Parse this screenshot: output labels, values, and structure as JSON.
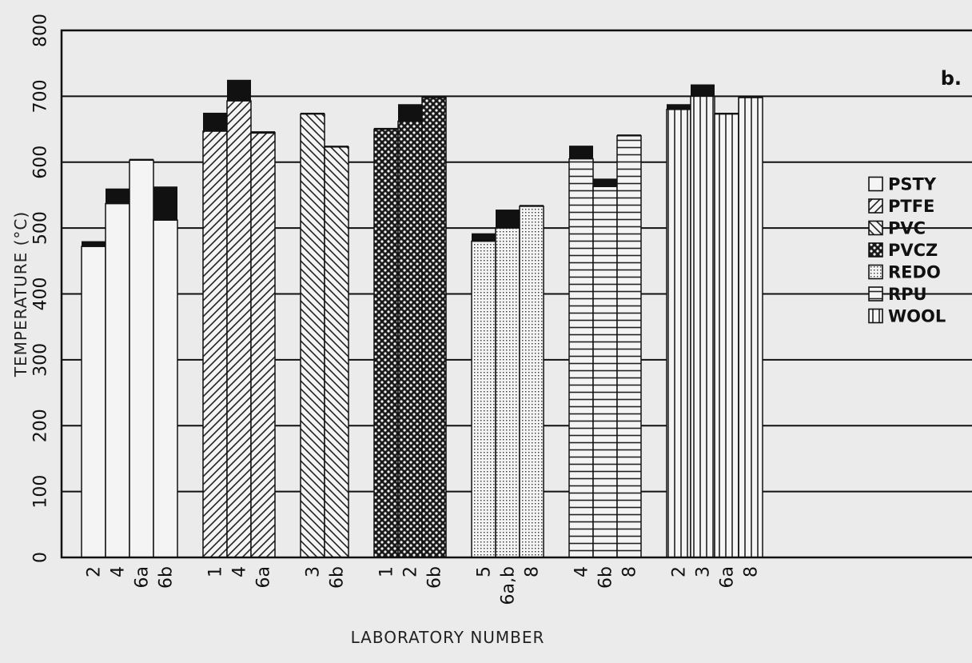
{
  "chart_data": {
    "type": "bar",
    "panel_label": "b.",
    "ylabel": "TEMPERATURE (°C)",
    "xlabel": "LABORATORY NUMBER",
    "ylim": [
      0,
      800
    ],
    "yticks": [
      0,
      100,
      200,
      300,
      400,
      500,
      600,
      700,
      800
    ],
    "grid": true,
    "legend_position": "right",
    "groups": [
      {
        "material": "PSTY",
        "pattern": "blank",
        "bars": [
          {
            "lab": "2",
            "value": 472,
            "range_top": 480
          },
          {
            "lab": "4",
            "value": 537,
            "range_top": 560
          },
          {
            "lab": "6a",
            "value": 603,
            "range_top": 605
          },
          {
            "lab": "6b",
            "value": 512,
            "range_top": 563
          }
        ]
      },
      {
        "material": "PTFE",
        "pattern": "diag-right",
        "bars": [
          {
            "lab": "1",
            "value": 647,
            "range_top": 675
          },
          {
            "lab": "4",
            "value": 693,
            "range_top": 725
          },
          {
            "lab": "6a",
            "value": 645,
            "range_top": 645
          }
        ]
      },
      {
        "material": "PVC",
        "pattern": "diag-left",
        "bars": [
          {
            "lab": "3",
            "value": 673,
            "range_top": 675
          },
          {
            "lab": "6b",
            "value": 623,
            "range_top": 625
          }
        ]
      },
      {
        "material": "PVCZ",
        "pattern": "checker",
        "bars": [
          {
            "lab": "1",
            "value": 650,
            "range_top": 652
          },
          {
            "lab": "2",
            "value": 662,
            "range_top": 688
          },
          {
            "lab": "6b",
            "value": 698,
            "range_top": 700
          }
        ]
      },
      {
        "material": "REDO",
        "pattern": "dots",
        "bars": [
          {
            "lab": "5",
            "value": 480,
            "range_top": 492
          },
          {
            "lab": "6a,b",
            "value": 500,
            "range_top": 528
          },
          {
            "lab": "8",
            "value": 533,
            "range_top": 535
          }
        ]
      },
      {
        "material": "RPU",
        "pattern": "horizontal",
        "bars": [
          {
            "lab": "4",
            "value": 605,
            "range_top": 625
          },
          {
            "lab": "6b",
            "value": 563,
            "range_top": 575
          },
          {
            "lab": "8",
            "value": 640,
            "range_top": 642
          }
        ]
      },
      {
        "material": "WOOL",
        "pattern": "vertical",
        "bars": [
          {
            "lab": "2",
            "value": 680,
            "range_top": 688
          },
          {
            "lab": "3",
            "value": 700,
            "range_top": 718
          },
          {
            "lab": "6a",
            "value": 673,
            "range_top": 675
          },
          {
            "lab": "8",
            "value": 698,
            "range_top": 700
          }
        ]
      }
    ],
    "legend": [
      "PSTY",
      "PTFE",
      "PVC",
      "PVCZ",
      "REDO",
      "RPU",
      "WOOL"
    ],
    "colors": {
      "background": "#ebebeb",
      "bar_fill": "#f4f4f4",
      "range_marker": "#111111",
      "grid": "#111111"
    }
  }
}
